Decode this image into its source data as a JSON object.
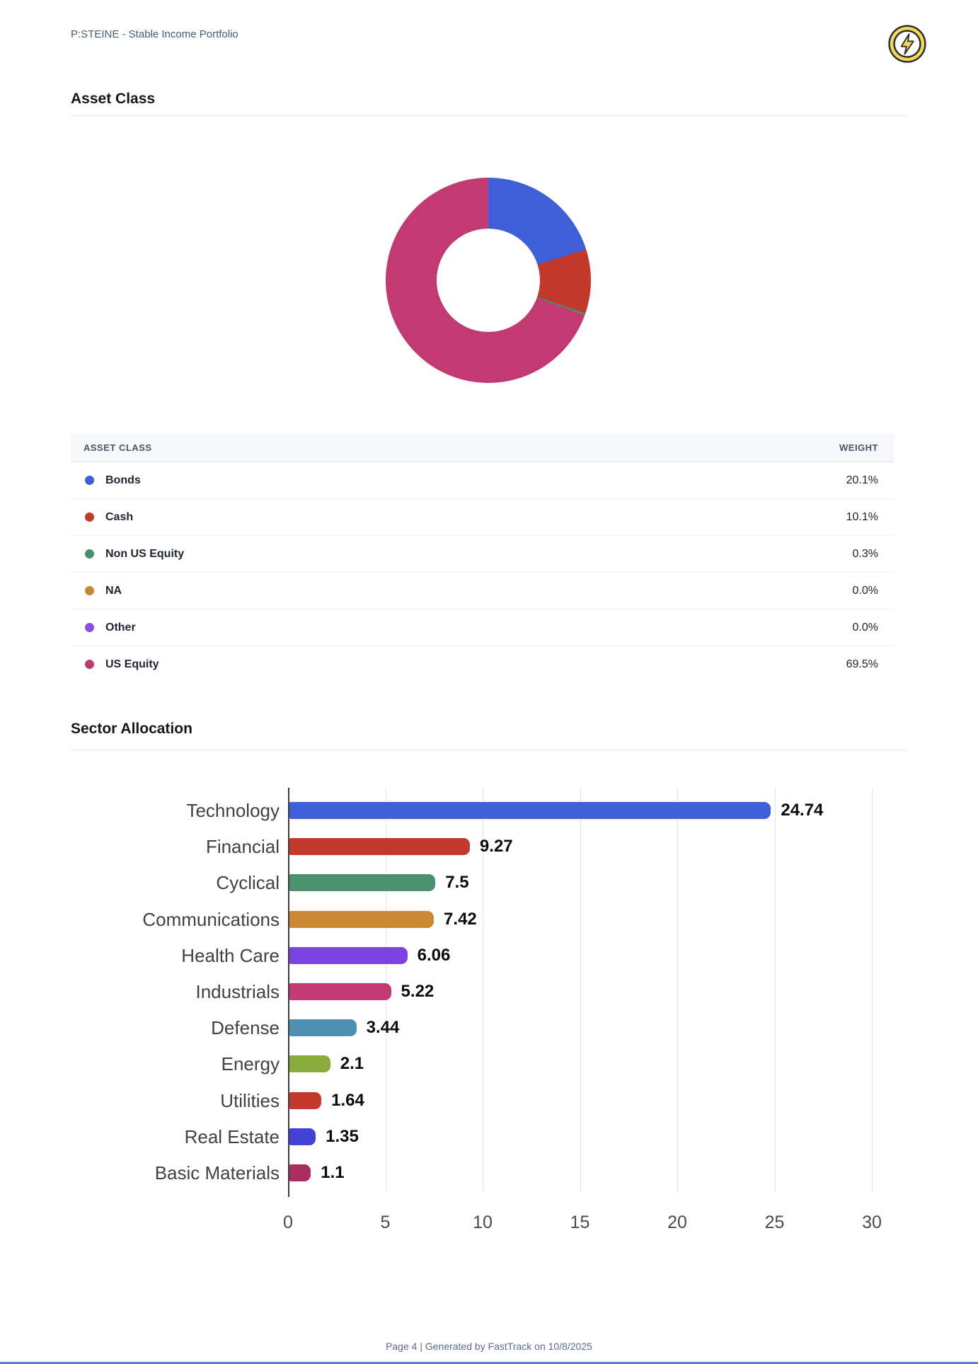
{
  "header": {
    "title": "P:STEINE - Stable Income Portfolio"
  },
  "logo": {
    "icon": "lightning-bolt-badge",
    "fill": "#efd85b",
    "stroke": "#2e2e2e"
  },
  "sections": {
    "asset_class_title": "Asset Class",
    "sector_allocation_title": "Sector Allocation"
  },
  "asset_table": {
    "columns": [
      "ASSET CLASS",
      "WEIGHT"
    ],
    "rows": [
      {
        "label": "Bonds",
        "weight": "20.1%",
        "pct": 20.1,
        "color": "#3e5fd8"
      },
      {
        "label": "Cash",
        "weight": "10.1%",
        "pct": 10.1,
        "color": "#c13a2d"
      },
      {
        "label": "Non US Equity",
        "weight": "0.3%",
        "pct": 0.3,
        "color": "#47906a"
      },
      {
        "label": "NA",
        "weight": "0.0%",
        "pct": 0.0,
        "color": "#ca8735"
      },
      {
        "label": "Other",
        "weight": "0.0%",
        "pct": 0.0,
        "color": "#8a4fe8"
      },
      {
        "label": "US Equity",
        "weight": "69.5%",
        "pct": 69.5,
        "color": "#c23a72"
      }
    ]
  },
  "chart_data": [
    {
      "type": "pie",
      "title": "Asset Class",
      "donut": true,
      "start_angle_deg": 0,
      "direction": "clockwise",
      "labels": [
        "Bonds",
        "Cash",
        "Non US Equity",
        "NA",
        "Other",
        "US Equity"
      ],
      "values": [
        20.1,
        10.1,
        0.3,
        0.0,
        0.0,
        69.5
      ],
      "colors": [
        "#3e5fd8",
        "#c13a2d",
        "#47906a",
        "#ca8735",
        "#8a4fe8",
        "#c23a72"
      ]
    },
    {
      "type": "bar",
      "orientation": "horizontal",
      "title": "Sector Allocation",
      "categories": [
        "Technology",
        "Financial",
        "Cyclical",
        "Communications",
        "Health Care",
        "Industrials",
        "Defense",
        "Energy",
        "Utilities",
        "Real Estate",
        "Basic Materials"
      ],
      "values": [
        24.74,
        9.27,
        7.5,
        7.42,
        6.06,
        5.22,
        3.44,
        2.1,
        1.64,
        1.35,
        1.1
      ],
      "value_labels": [
        "24.74",
        "9.27",
        "7.5",
        "7.42",
        "6.06",
        "5.22",
        "3.44",
        "2.1",
        "1.64",
        "1.35",
        "1.1"
      ],
      "colors": [
        "#3e5fd8",
        "#c13a2d",
        "#4b9170",
        "#ca8735",
        "#7c42e2",
        "#c23a72",
        "#4e90b0",
        "#8aac3c",
        "#c13a2d",
        "#4342d2",
        "#a92d5e"
      ],
      "xticks": [
        0,
        5,
        10,
        15,
        20,
        25,
        30
      ],
      "xlim": [
        0,
        30
      ],
      "grid": true,
      "xlabel": "",
      "ylabel": ""
    }
  ],
  "footer": {
    "text": "Page 4 | Generated by FastTrack on 10/8/2025"
  }
}
